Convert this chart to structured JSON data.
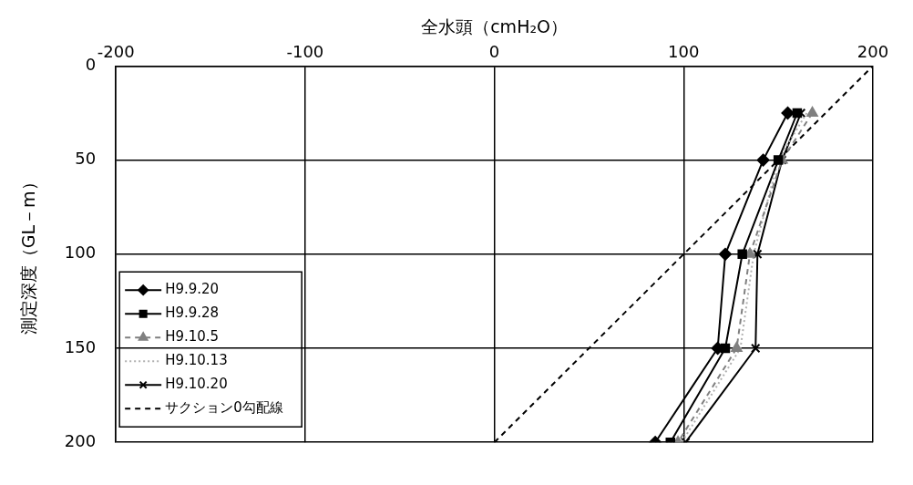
{
  "chart_data": {
    "type": "line",
    "xlabel": "全水頭（cmH₂O）",
    "ylabel": "測定深度（GL－m）",
    "xlim": [
      -200,
      200
    ],
    "xticks": [
      -200,
      -100,
      0,
      100,
      200
    ],
    "ylim": [
      200,
      0
    ],
    "yticks": [
      0,
      50,
      100,
      150,
      200
    ],
    "grid": true,
    "legend": "bottom left",
    "series": [
      {
        "name": "H9.9.20",
        "color": "#000000",
        "marker": "diamond",
        "line_style": "solid",
        "x": [
          155,
          142,
          122,
          118,
          85
        ],
        "values": [
          25,
          50,
          100,
          150,
          200
        ]
      },
      {
        "name": "H9.9.28",
        "color": "#000000",
        "marker": "square",
        "line_style": "solid",
        "x": [
          160,
          150,
          131,
          122,
          93
        ],
        "values": [
          25,
          50,
          100,
          150,
          200
        ]
      },
      {
        "name": "H9.10.5",
        "color": "#808080",
        "marker": "triangle",
        "line_style": "dashed",
        "x": [
          168,
          152,
          135,
          128,
          97
        ],
        "values": [
          25,
          50,
          100,
          150,
          200
        ]
      },
      {
        "name": "H9.10.13",
        "color": "#b0b0b0",
        "marker": "none",
        "line_style": "dotted",
        "x": [
          165,
          150,
          137,
          130,
          99
        ],
        "values": [
          25,
          50,
          100,
          150,
          200
        ]
      },
      {
        "name": "H9.10.20",
        "color": "#000000",
        "marker": "cross",
        "line_style": "solid",
        "x": [
          162,
          152,
          139,
          138,
          101
        ],
        "values": [
          25,
          50,
          100,
          150,
          200
        ]
      },
      {
        "name": "サクション0勾配線",
        "color": "#000000",
        "marker": "none",
        "line_style": "dashed",
        "x": [
          0,
          200
        ],
        "values": [
          200,
          0
        ]
      }
    ]
  }
}
